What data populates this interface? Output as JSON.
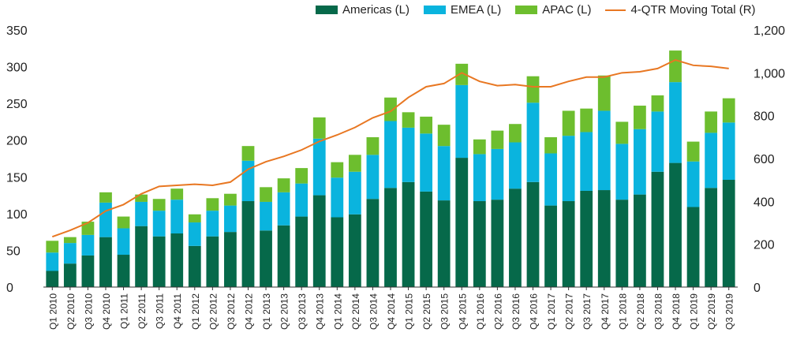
{
  "legend": {
    "americas": "Americas (L)",
    "emea": "EMEA (L)",
    "apac": "APAC (L)",
    "moving_total": "4-QTR Moving Total (R)"
  },
  "colors": {
    "americas": "#06694A",
    "emea": "#0AB4DE",
    "apac": "#6DBE2E",
    "moving_total": "#E87722"
  },
  "chart_data": {
    "type": "bar",
    "stacked": true,
    "title": "",
    "xlabel": "",
    "ylabel": "",
    "legend_position": "top",
    "grid": false,
    "categories": [
      "Q1 2010",
      "Q2 2010",
      "Q3 2010",
      "Q4 2010",
      "Q1 2011",
      "Q2 2011",
      "Q3 2011",
      "Q4 2011",
      "Q1 2012",
      "Q2 2012",
      "Q3 2012",
      "Q4 2012",
      "Q1 2013",
      "Q2 2013",
      "Q3 2013",
      "Q4 2013",
      "Q1 2014",
      "Q2 2014",
      "Q3 2014",
      "Q4 2014",
      "Q1 2015",
      "Q2 2015",
      "Q3 2015",
      "Q4 2015",
      "Q1 2016",
      "Q2 2016",
      "Q3 2016",
      "Q4 2016",
      "Q1 2017",
      "Q2 2017",
      "Q3 2017",
      "Q4 2017",
      "Q1 2018",
      "Q2 2018",
      "Q3 2018",
      "Q4 2018",
      "Q1 2019",
      "Q2 2019",
      "Q3 2019"
    ],
    "ylim_left": [
      0,
      350
    ],
    "yticks_left": [
      0,
      50,
      100,
      150,
      200,
      250,
      300,
      350
    ],
    "ylim_right": [
      0,
      1200
    ],
    "yticks_right": [
      0,
      200,
      400,
      600,
      800,
      1000,
      1200
    ],
    "ytick_labels_right": [
      "0",
      "200",
      "400",
      "600",
      "800",
      "1,000",
      "1,200"
    ],
    "series": [
      {
        "name": "Americas (L)",
        "axis": "left",
        "values": [
          22,
          32,
          43,
          68,
          44,
          83,
          69,
          73,
          56,
          69,
          75,
          117,
          77,
          84,
          96,
          125,
          95,
          99,
          120,
          135,
          143,
          130,
          118,
          176,
          117,
          119,
          134,
          143,
          111,
          117,
          131,
          132,
          119,
          126,
          157,
          169,
          109,
          135,
          146
        ]
      },
      {
        "name": "EMEA (L)",
        "axis": "left",
        "values": [
          25,
          28,
          28,
          47,
          36,
          33,
          35,
          46,
          32,
          35,
          36,
          55,
          39,
          45,
          45,
          77,
          54,
          58,
          60,
          91,
          74,
          79,
          74,
          99,
          64,
          69,
          63,
          108,
          71,
          89,
          80,
          108,
          76,
          89,
          82,
          110,
          62,
          75,
          78
        ]
      },
      {
        "name": "APAC (L)",
        "axis": "left",
        "values": [
          16,
          8,
          18,
          14,
          16,
          10,
          16,
          15,
          11,
          17,
          16,
          20,
          20,
          19,
          21,
          29,
          21,
          23,
          24,
          32,
          21,
          23,
          29,
          29,
          20,
          25,
          25,
          36,
          22,
          34,
          32,
          48,
          30,
          32,
          22,
          43,
          27,
          29,
          33
        ]
      },
      {
        "name": "4-QTR Moving Total (R)",
        "axis": "right",
        "type": "line",
        "values": [
          235,
          265,
          300,
          355,
          385,
          435,
          470,
          475,
          480,
          475,
          490,
          550,
          585,
          610,
          640,
          680,
          710,
          745,
          790,
          820,
          885,
          935,
          950,
          1000,
          960,
          940,
          945,
          935,
          935,
          960,
          980,
          980,
          1000,
          1005,
          1020,
          1060,
          1035,
          1030,
          1020
        ]
      }
    ],
    "highlight": {
      "category": "Q4 2018",
      "note": "highest bar"
    },
    "x_tick_labels": [
      "Q1 2010",
      "Q2 2010",
      "Q3 2010",
      "Q4 2010",
      "Q1 2011",
      "Q2 2011",
      "Q3 2011",
      "Q4 2011",
      "Q1 2012",
      "Q2 2012",
      "Q3 2012",
      "Q4 2012",
      "Q1 2013",
      "Q2 2013",
      "Q3 2013",
      "Q4 2013",
      "Q1 2014",
      "Q2 2014",
      "Q3 2014",
      "Q4 2014",
      "Q1 2015",
      "Q2 2015",
      "Q3 2015",
      "Q4 2015",
      "Q1 2016",
      "Q2 2016",
      "Q3 2016",
      "Q4 2016",
      "Q1 2017",
      "Q2 2017",
      "Q3 2017",
      "Q4 2017",
      "Q1 2018",
      "Q2 2018",
      "Q3 2018",
      "Q4 2018",
      "Q1 2019",
      "Q2 2019",
      "Q3 2019"
    ]
  }
}
